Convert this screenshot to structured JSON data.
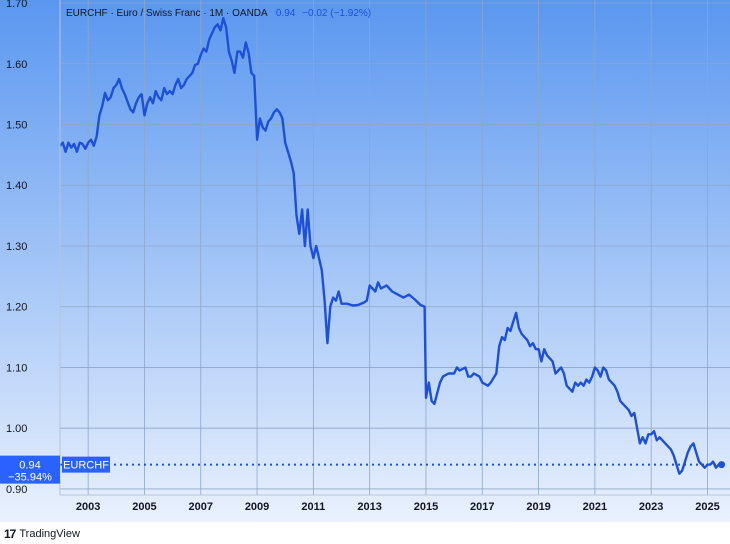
{
  "header": {
    "symbol_desc": "EURCHF · Euro / Swiss Franc · 1M · OANDA",
    "last_value": "0.94",
    "change": "−0.02 (−1.92%)"
  },
  "price_label": {
    "value": "0.94",
    "change_pct": "−35.94%",
    "symbol": "EURCHF"
  },
  "footer": {
    "brand": "TradingView",
    "logo_text": "17"
  },
  "colors": {
    "line": "#1e4fd8",
    "bg_top": "#5a97f0",
    "bg_bottom": "#e9f1fd",
    "axis_text": "#131722",
    "badge": "#2962ff"
  },
  "chart_data": {
    "type": "line",
    "title": "EURCHF · Euro / Swiss Franc · 1M · OANDA",
    "x_unit": "year",
    "ylim": [
      0.89,
      1.705
    ],
    "xlim": [
      2002.0,
      2025.8
    ],
    "y_ticks": [
      "1.70",
      "1.60",
      "1.50",
      "1.40",
      "1.30",
      "1.20",
      "1.10",
      "1.00",
      "0.90"
    ],
    "x_ticks": [
      "2003",
      "2005",
      "2007",
      "2009",
      "2011",
      "2013",
      "2015",
      "2017",
      "2019",
      "2021",
      "2023",
      "2025"
    ],
    "grid": true,
    "series": [
      {
        "name": "EURCHF",
        "points": [
          [
            2002.0,
            1.465
          ],
          [
            2002.1,
            1.47
          ],
          [
            2002.2,
            1.455
          ],
          [
            2002.3,
            1.47
          ],
          [
            2002.4,
            1.462
          ],
          [
            2002.5,
            1.468
          ],
          [
            2002.6,
            1.455
          ],
          [
            2002.7,
            1.47
          ],
          [
            2002.8,
            1.468
          ],
          [
            2002.9,
            1.46
          ],
          [
            2003.0,
            1.47
          ],
          [
            2003.1,
            1.475
          ],
          [
            2003.2,
            1.465
          ],
          [
            2003.3,
            1.48
          ],
          [
            2003.4,
            1.515
          ],
          [
            2003.5,
            1.53
          ],
          [
            2003.6,
            1.552
          ],
          [
            2003.7,
            1.54
          ],
          [
            2003.8,
            1.545
          ],
          [
            2003.9,
            1.56
          ],
          [
            2004.0,
            1.565
          ],
          [
            2004.1,
            1.575
          ],
          [
            2004.2,
            1.56
          ],
          [
            2004.3,
            1.55
          ],
          [
            2004.5,
            1.525
          ],
          [
            2004.6,
            1.52
          ],
          [
            2004.7,
            1.535
          ],
          [
            2004.8,
            1.545
          ],
          [
            2004.9,
            1.55
          ],
          [
            2005.0,
            1.515
          ],
          [
            2005.1,
            1.535
          ],
          [
            2005.2,
            1.545
          ],
          [
            2005.3,
            1.535
          ],
          [
            2005.4,
            1.555
          ],
          [
            2005.5,
            1.545
          ],
          [
            2005.6,
            1.54
          ],
          [
            2005.7,
            1.56
          ],
          [
            2005.8,
            1.55
          ],
          [
            2005.9,
            1.555
          ],
          [
            2006.0,
            1.55
          ],
          [
            2006.1,
            1.565
          ],
          [
            2006.2,
            1.575
          ],
          [
            2006.3,
            1.56
          ],
          [
            2006.4,
            1.565
          ],
          [
            2006.5,
            1.575
          ],
          [
            2006.7,
            1.585
          ],
          [
            2006.8,
            1.598
          ],
          [
            2006.9,
            1.6
          ],
          [
            2007.0,
            1.615
          ],
          [
            2007.1,
            1.625
          ],
          [
            2007.2,
            1.62
          ],
          [
            2007.3,
            1.64
          ],
          [
            2007.4,
            1.65
          ],
          [
            2007.5,
            1.66
          ],
          [
            2007.6,
            1.665
          ],
          [
            2007.7,
            1.655
          ],
          [
            2007.8,
            1.675
          ],
          [
            2007.9,
            1.66
          ],
          [
            2008.0,
            1.62
          ],
          [
            2008.1,
            1.605
          ],
          [
            2008.2,
            1.585
          ],
          [
            2008.3,
            1.62
          ],
          [
            2008.4,
            1.62
          ],
          [
            2008.5,
            1.61
          ],
          [
            2008.6,
            1.635
          ],
          [
            2008.7,
            1.618
          ],
          [
            2008.8,
            1.585
          ],
          [
            2008.9,
            1.58
          ],
          [
            2009.0,
            1.475
          ],
          [
            2009.1,
            1.51
          ],
          [
            2009.2,
            1.495
          ],
          [
            2009.3,
            1.49
          ],
          [
            2009.4,
            1.505
          ],
          [
            2009.5,
            1.51
          ],
          [
            2009.6,
            1.52
          ],
          [
            2009.7,
            1.525
          ],
          [
            2009.8,
            1.52
          ],
          [
            2009.9,
            1.51
          ],
          [
            2010.0,
            1.47
          ],
          [
            2010.1,
            1.455
          ],
          [
            2010.2,
            1.44
          ],
          [
            2010.3,
            1.42
          ],
          [
            2010.4,
            1.35
          ],
          [
            2010.5,
            1.32
          ],
          [
            2010.6,
            1.36
          ],
          [
            2010.7,
            1.3
          ],
          [
            2010.8,
            1.36
          ],
          [
            2010.9,
            1.3
          ],
          [
            2011.0,
            1.28
          ],
          [
            2011.1,
            1.3
          ],
          [
            2011.2,
            1.28
          ],
          [
            2011.3,
            1.26
          ],
          [
            2011.4,
            1.21
          ],
          [
            2011.5,
            1.14
          ],
          [
            2011.6,
            1.2
          ],
          [
            2011.7,
            1.215
          ],
          [
            2011.8,
            1.21
          ],
          [
            2011.9,
            1.225
          ],
          [
            2012.0,
            1.205
          ],
          [
            2012.2,
            1.205
          ],
          [
            2012.4,
            1.202
          ],
          [
            2012.6,
            1.203
          ],
          [
            2012.8,
            1.207
          ],
          [
            2012.9,
            1.21
          ],
          [
            2013.0,
            1.235
          ],
          [
            2013.2,
            1.225
          ],
          [
            2013.3,
            1.24
          ],
          [
            2013.4,
            1.23
          ],
          [
            2013.6,
            1.235
          ],
          [
            2013.8,
            1.225
          ],
          [
            2014.0,
            1.22
          ],
          [
            2014.2,
            1.215
          ],
          [
            2014.4,
            1.22
          ],
          [
            2014.6,
            1.212
          ],
          [
            2014.8,
            1.203
          ],
          [
            2014.95,
            1.2
          ],
          [
            2015.0,
            1.05
          ],
          [
            2015.1,
            1.075
          ],
          [
            2015.2,
            1.045
          ],
          [
            2015.3,
            1.04
          ],
          [
            2015.5,
            1.075
          ],
          [
            2015.6,
            1.085
          ],
          [
            2015.8,
            1.09
          ],
          [
            2016.0,
            1.09
          ],
          [
            2016.1,
            1.1
          ],
          [
            2016.2,
            1.095
          ],
          [
            2016.4,
            1.1
          ],
          [
            2016.5,
            1.085
          ],
          [
            2016.6,
            1.085
          ],
          [
            2016.7,
            1.09
          ],
          [
            2016.9,
            1.085
          ],
          [
            2017.0,
            1.075
          ],
          [
            2017.2,
            1.07
          ],
          [
            2017.3,
            1.075
          ],
          [
            2017.5,
            1.09
          ],
          [
            2017.6,
            1.135
          ],
          [
            2017.7,
            1.15
          ],
          [
            2017.8,
            1.145
          ],
          [
            2017.9,
            1.165
          ],
          [
            2018.0,
            1.16
          ],
          [
            2018.1,
            1.175
          ],
          [
            2018.2,
            1.19
          ],
          [
            2018.3,
            1.165
          ],
          [
            2018.4,
            1.155
          ],
          [
            2018.5,
            1.15
          ],
          [
            2018.6,
            1.145
          ],
          [
            2018.7,
            1.135
          ],
          [
            2018.8,
            1.14
          ],
          [
            2018.9,
            1.13
          ],
          [
            2019.0,
            1.13
          ],
          [
            2019.1,
            1.11
          ],
          [
            2019.2,
            1.13
          ],
          [
            2019.3,
            1.12
          ],
          [
            2019.4,
            1.115
          ],
          [
            2019.5,
            1.11
          ],
          [
            2019.6,
            1.09
          ],
          [
            2019.7,
            1.095
          ],
          [
            2019.8,
            1.1
          ],
          [
            2019.9,
            1.09
          ],
          [
            2020.0,
            1.07
          ],
          [
            2020.1,
            1.065
          ],
          [
            2020.2,
            1.06
          ],
          [
            2020.3,
            1.075
          ],
          [
            2020.4,
            1.07
          ],
          [
            2020.5,
            1.075
          ],
          [
            2020.6,
            1.07
          ],
          [
            2020.7,
            1.08
          ],
          [
            2020.8,
            1.075
          ],
          [
            2020.9,
            1.085
          ],
          [
            2021.0,
            1.1
          ],
          [
            2021.1,
            1.095
          ],
          [
            2021.2,
            1.085
          ],
          [
            2021.3,
            1.1
          ],
          [
            2021.4,
            1.095
          ],
          [
            2021.5,
            1.08
          ],
          [
            2021.6,
            1.075
          ],
          [
            2021.7,
            1.07
          ],
          [
            2021.8,
            1.06
          ],
          [
            2021.9,
            1.045
          ],
          [
            2022.0,
            1.04
          ],
          [
            2022.1,
            1.035
          ],
          [
            2022.2,
            1.03
          ],
          [
            2022.3,
            1.02
          ],
          [
            2022.4,
            1.025
          ],
          [
            2022.5,
            1.0
          ],
          [
            2022.6,
            0.975
          ],
          [
            2022.7,
            0.985
          ],
          [
            2022.8,
            0.975
          ],
          [
            2022.9,
            0.99
          ],
          [
            2023.0,
            0.99
          ],
          [
            2023.1,
            0.995
          ],
          [
            2023.2,
            0.98
          ],
          [
            2023.3,
            0.985
          ],
          [
            2023.4,
            0.98
          ],
          [
            2023.5,
            0.975
          ],
          [
            2023.6,
            0.97
          ],
          [
            2023.7,
            0.965
          ],
          [
            2023.8,
            0.955
          ],
          [
            2023.9,
            0.94
          ],
          [
            2024.0,
            0.925
          ],
          [
            2024.1,
            0.93
          ],
          [
            2024.2,
            0.945
          ],
          [
            2024.3,
            0.96
          ],
          [
            2024.4,
            0.97
          ],
          [
            2024.5,
            0.975
          ],
          [
            2024.6,
            0.96
          ],
          [
            2024.7,
            0.945
          ],
          [
            2024.8,
            0.94
          ],
          [
            2024.9,
            0.935
          ],
          [
            2025.0,
            0.94
          ],
          [
            2025.1,
            0.94
          ],
          [
            2025.2,
            0.945
          ],
          [
            2025.3,
            0.935
          ],
          [
            2025.4,
            0.94
          ],
          [
            2025.5,
            0.94
          ]
        ]
      }
    ]
  }
}
